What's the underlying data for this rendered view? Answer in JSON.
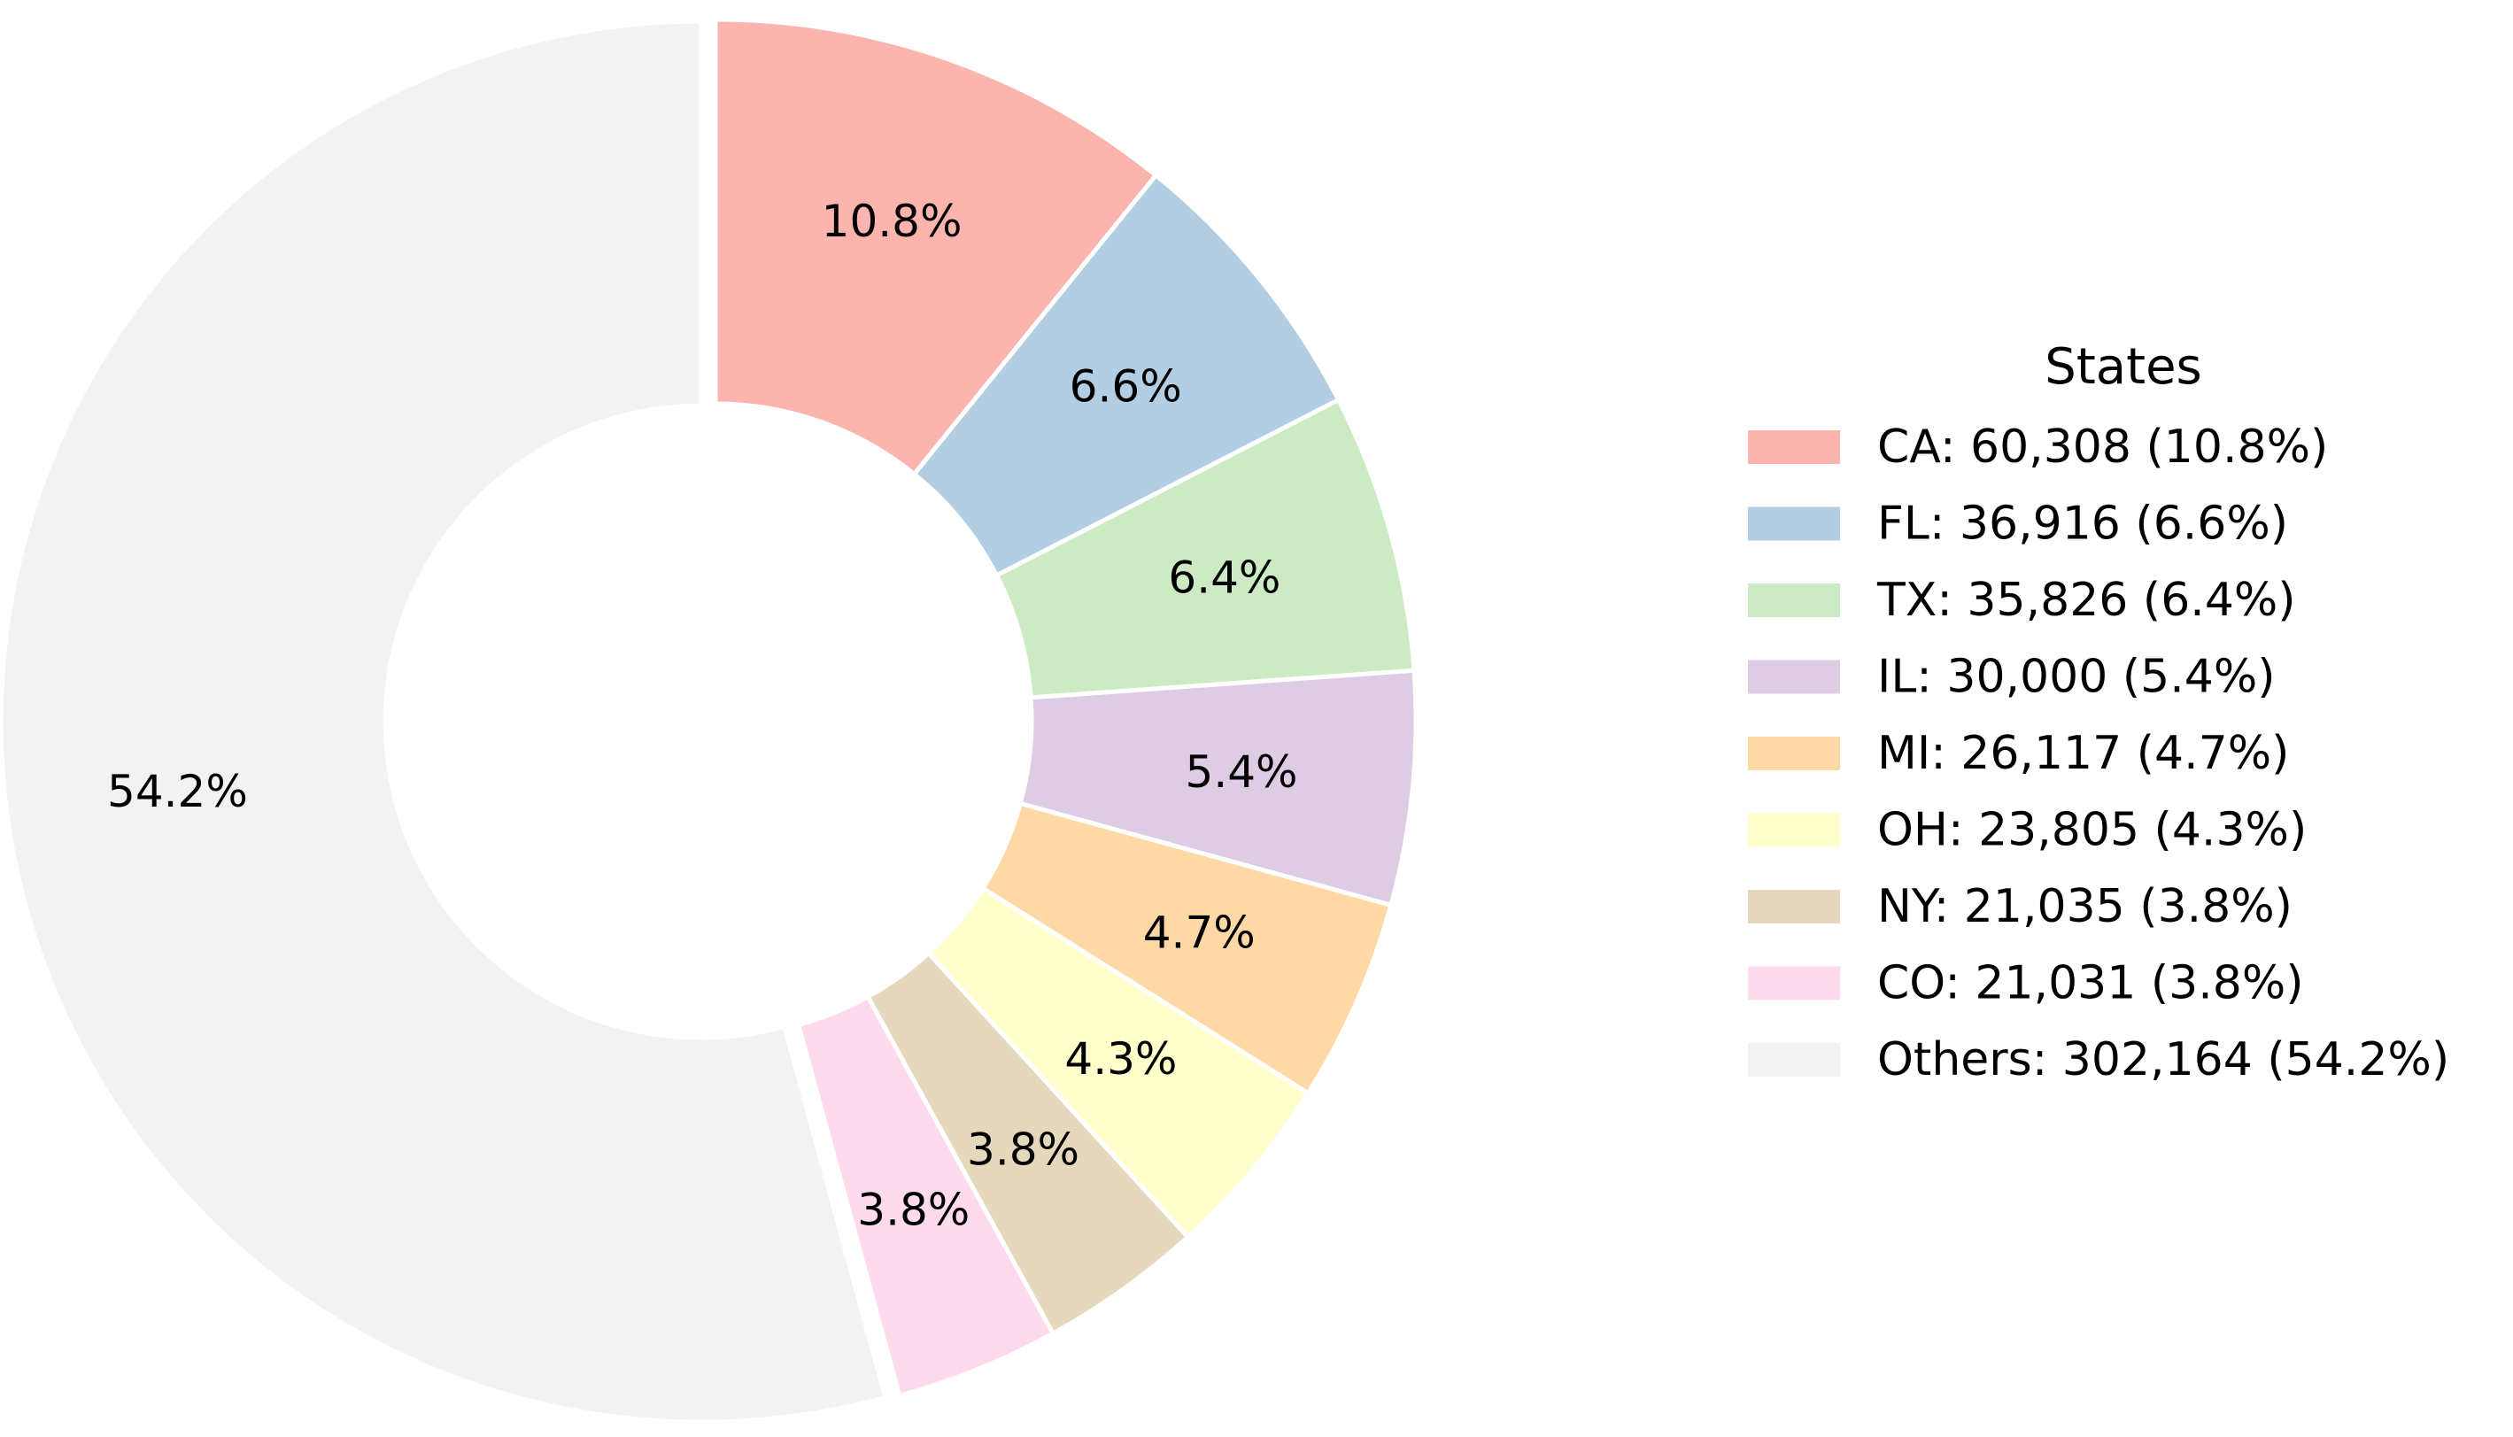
{
  "chart_data": {
    "type": "pie",
    "donut": true,
    "legend_title": "States",
    "legend_position": "right",
    "slices": [
      {
        "name": "CA",
        "value": 60308,
        "percent_label": "10.8%",
        "legend_label": "CA: 60,308 (10.8%)",
        "color": "#fbb4ae",
        "explode": false
      },
      {
        "name": "FL",
        "value": 36916,
        "percent_label": "6.6%",
        "legend_label": "FL: 36,916 (6.6%)",
        "color": "#b3cde3",
        "explode": false
      },
      {
        "name": "TX",
        "value": 35826,
        "percent_label": "6.4%",
        "legend_label": "TX: 35,826 (6.4%)",
        "color": "#ccebc5",
        "explode": false
      },
      {
        "name": "IL",
        "value": 30000,
        "percent_label": "5.4%",
        "legend_label": "IL: 30,000 (5.4%)",
        "color": "#decbe4",
        "explode": false
      },
      {
        "name": "MI",
        "value": 26117,
        "percent_label": "4.7%",
        "legend_label": "MI: 26,117 (4.7%)",
        "color": "#fed9a6",
        "explode": false
      },
      {
        "name": "OH",
        "value": 23805,
        "percent_label": "4.3%",
        "legend_label": "OH: 23,805 (4.3%)",
        "color": "#ffffcc",
        "explode": false
      },
      {
        "name": "NY",
        "value": 21035,
        "percent_label": "3.8%",
        "legend_label": "NY: 21,035 (3.8%)",
        "color": "#e5d8bd",
        "explode": false
      },
      {
        "name": "CO",
        "value": 21031,
        "percent_label": "3.8%",
        "legend_label": "CO: 21,031 (3.8%)",
        "color": "#fddaec",
        "explode": false
      },
      {
        "name": "Others",
        "value": 302164,
        "percent_label": "54.2%",
        "legend_label": "Others: 302,164 (54.2%)",
        "color": "#f2f2f2",
        "explode": true
      }
    ]
  }
}
